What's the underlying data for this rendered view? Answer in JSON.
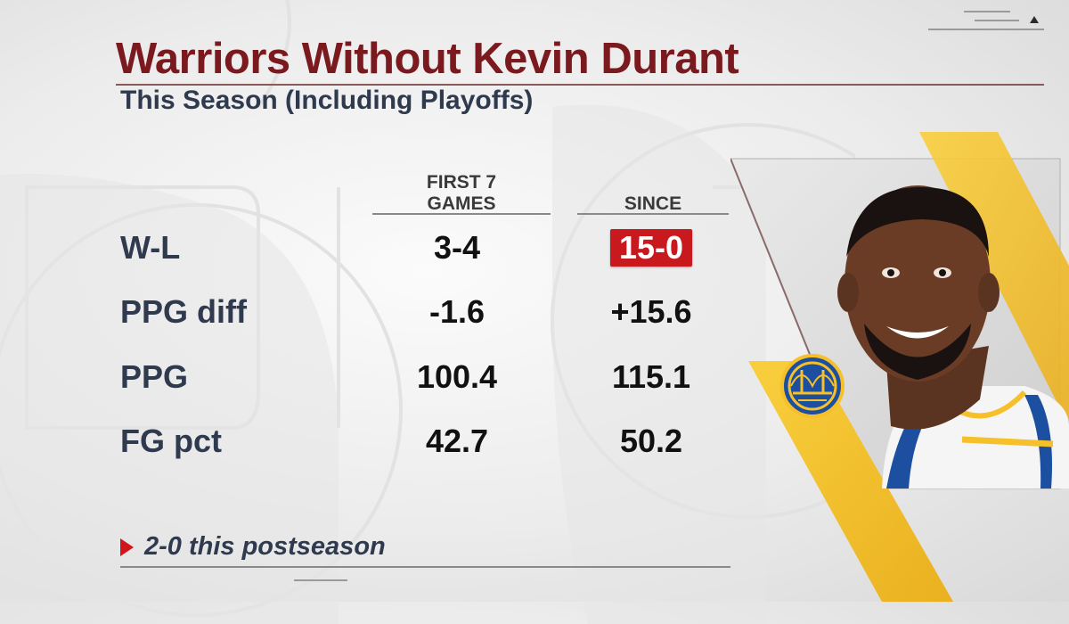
{
  "title": "Warriors Without Kevin Durant",
  "subtitle": "This Season (Including Playoffs)",
  "columns": {
    "col1": "FIRST 7\nGAMES",
    "col2": "SINCE"
  },
  "rows": [
    {
      "label": "W-L",
      "first7": "3-4",
      "since": "15-0",
      "since_highlight": true
    },
    {
      "label": "PPG diff",
      "first7": "-1.6",
      "since": "+15.6"
    },
    {
      "label": "PPG",
      "first7": "100.4",
      "since": "115.1"
    },
    {
      "label": "FG pct",
      "first7": "42.7",
      "since": "50.2"
    }
  ],
  "footnote": "2-0 this postseason",
  "colors": {
    "title": "#7a1a1e",
    "text": "#2f3a4f",
    "highlight": "#c8191e",
    "warriors_gold": "#f5c02a",
    "warriors_blue": "#1d4fa0"
  },
  "icons": {
    "team_logo": "golden-state-warriors-logo",
    "player_photo": "player-headshot"
  }
}
